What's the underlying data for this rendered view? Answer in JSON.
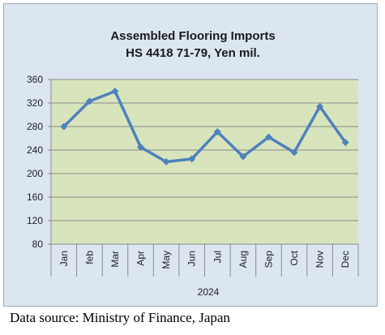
{
  "chart_data": {
    "type": "line",
    "title_lines": [
      "Assembled Flooring Imports",
      "HS 4418 71-79, Yen mil."
    ],
    "categories": [
      "Jan",
      "feb",
      "Mar",
      "Apr",
      "May",
      "Jun",
      "Jul",
      "Aug",
      "Sep",
      "Oct",
      "Nov",
      "Dec"
    ],
    "series": [
      {
        "values": [
          280,
          323,
          340,
          245,
          220,
          225,
          271,
          229,
          262,
          236,
          314,
          253
        ]
      }
    ],
    "xlabel": "2024",
    "ylabel": "",
    "ylim": [
      80,
      360
    ],
    "yticks": [
      "80",
      "120",
      "160",
      "200",
      "240",
      "280",
      "320",
      "360"
    ],
    "grid": true,
    "legend": "none",
    "colors": {
      "plot_background": "#d8e4bc",
      "chart_background": "#dbe6f1",
      "line": "#4f81bd",
      "gridline": "#8c8c8c"
    }
  },
  "source_note": "Data source: Ministry of Finance, Japan"
}
